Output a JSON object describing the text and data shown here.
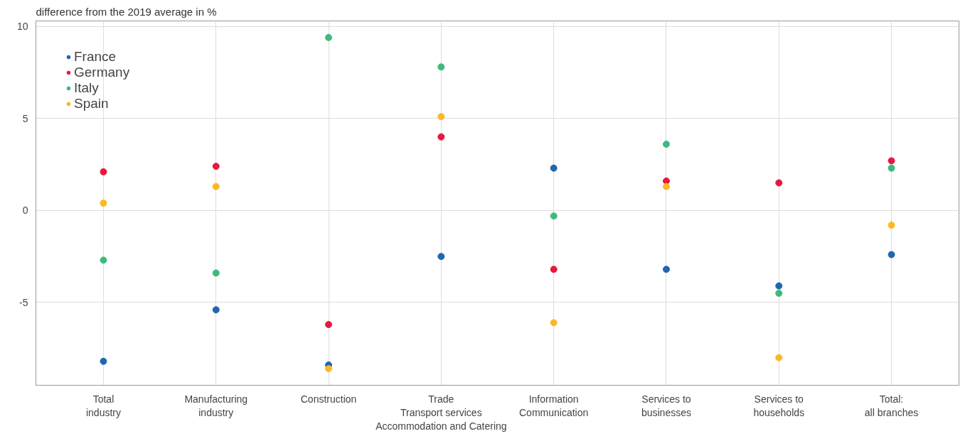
{
  "chart_data": {
    "type": "scatter",
    "subtitle": "difference from the 2019 average in %",
    "categories": [
      "Total\nindustry",
      "Manufacturing\nindustry",
      "Construction",
      "Trade\nTransport services\nAccommodation and Catering",
      "Information\nCommunication",
      "Services to\nbusinesses",
      "Services to\nhouseholds",
      "Total:\nall branches"
    ],
    "series": [
      {
        "name": "France",
        "color": "#2166b0",
        "values": [
          -8.2,
          -5.4,
          -8.4,
          -2.5,
          2.3,
          -3.2,
          -4.1,
          -2.4
        ]
      },
      {
        "name": "Germany",
        "color": "#e8173f",
        "values": [
          2.1,
          2.4,
          -6.2,
          4.0,
          -3.2,
          1.6,
          1.5,
          2.7
        ]
      },
      {
        "name": "Italy",
        "color": "#3dba7c",
        "values": [
          -2.7,
          -3.4,
          9.4,
          7.8,
          -0.3,
          3.6,
          -4.5,
          2.3
        ]
      },
      {
        "name": "Spain",
        "color": "#fbb825",
        "values": [
          0.4,
          1.3,
          -8.6,
          5.1,
          -6.1,
          1.3,
          -8.0,
          -0.8
        ]
      }
    ],
    "ylim": [
      -9.5,
      10.3
    ],
    "yticks": [
      -5,
      0,
      5,
      10
    ],
    "grid": true,
    "legend": "top left",
    "marker": "circle"
  }
}
